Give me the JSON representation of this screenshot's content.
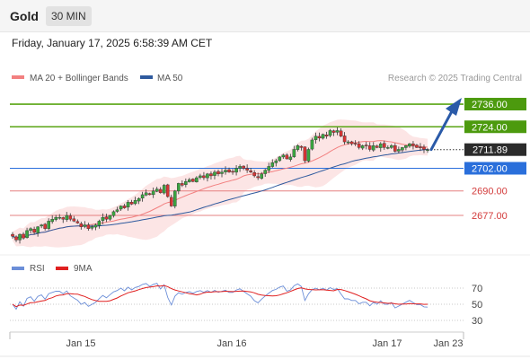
{
  "header": {
    "title": "Gold",
    "timeframe": "30 MIN",
    "datetime": "Friday, January 17, 2025 6:58:39 AM CET"
  },
  "chart_data": {
    "type": "candlestick",
    "legend": [
      {
        "name": "MA 20 + Bollinger Bands",
        "color": "#f28080"
      },
      {
        "name": "MA 50",
        "color": "#2e5a9e"
      }
    ],
    "credit": "Research © 2025 Trading Central",
    "current_price": "2711.89",
    "y_range": [
      2658,
      2746
    ],
    "levels": [
      {
        "value": 2736.0,
        "label": "2736.00",
        "kind": "target"
      },
      {
        "value": 2724.0,
        "label": "2724.00",
        "kind": "resistance"
      },
      {
        "value": 2702.0,
        "label": "2702.00",
        "kind": "pivot"
      },
      {
        "value": 2690.0,
        "label": "2690.00",
        "kind": "support"
      },
      {
        "value": 2677.0,
        "label": "2677.00",
        "kind": "support"
      }
    ],
    "forecast_arrow": {
      "from": 2711.89,
      "to": 2736.0
    },
    "closes": [
      2666,
      2664,
      2667,
      2665,
      2669,
      2670,
      2668,
      2671,
      2672,
      2670,
      2674,
      2675,
      2676,
      2676,
      2675,
      2677,
      2675,
      2674,
      2673,
      2671,
      2672,
      2670,
      2671,
      2672,
      2674,
      2676,
      2675,
      2677,
      2679,
      2680,
      2682,
      2681,
      2684,
      2683,
      2685,
      2686,
      2688,
      2689,
      2688,
      2690,
      2691,
      2689,
      2693,
      2687,
      2682,
      2690,
      2694,
      2693,
      2695,
      2696,
      2695,
      2697,
      2698,
      2697,
      2699,
      2698,
      2700,
      2699,
      2700,
      2701,
      2700,
      2700,
      2702,
      2703,
      2702,
      2701,
      2700,
      2698,
      2697,
      2699,
      2701,
      2703,
      2705,
      2706,
      2708,
      2709,
      2707,
      2708,
      2712,
      2714,
      2713,
      2706,
      2712,
      2717,
      2719,
      2718,
      2720,
      2719,
      2722,
      2721,
      2722,
      2719,
      2716,
      2716,
      2715,
      2715,
      2713,
      2714,
      2714,
      2712,
      2714,
      2713,
      2715,
      2713,
      2713,
      2714,
      2711,
      2712,
      2713,
      2714,
      2715,
      2714,
      2713,
      2713,
      2712,
      2711.89
    ],
    "rsi": {
      "legend": [
        {
          "name": "RSI",
          "color": "#6b8ed8"
        },
        {
          "name": "9MA",
          "color": "#e02020"
        }
      ],
      "ticks": [
        "70",
        "50",
        "30"
      ],
      "y_range": [
        20,
        80
      ]
    },
    "x_labels": [
      "Jan 15",
      "Jan 16",
      "Jan 17",
      "Jan 23"
    ]
  }
}
